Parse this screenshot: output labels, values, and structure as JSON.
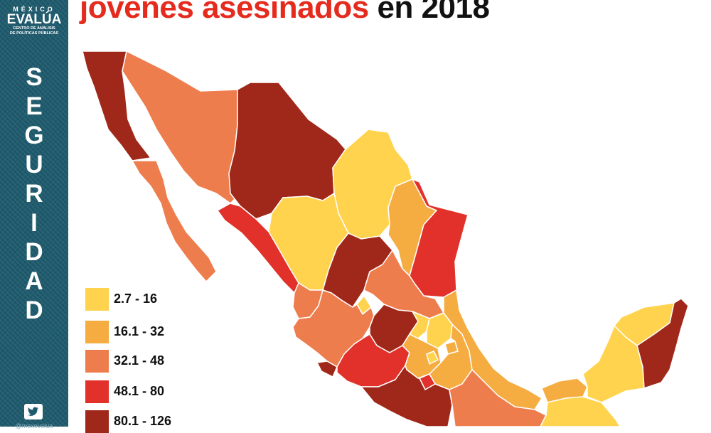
{
  "title": {
    "accent": "jóvenes asesinados",
    "rest": " en 2018"
  },
  "sidebar": {
    "logo_top": "MÉXICO",
    "logo_main": "EVALÚA",
    "logo_sub_1": "CENTRO DE ANÁLISIS",
    "logo_sub_2": "DE POLÍTICAS PÚBLICAS",
    "section_letters": [
      "S",
      "E",
      "G",
      "U",
      "R",
      "I",
      "D",
      "A",
      "D"
    ],
    "twitter_icon": "twitter-bird-icon",
    "handle": "@mexevalua"
  },
  "legend": [
    {
      "label": "2.7 - 16",
      "color": "#ffd34e"
    },
    {
      "label": "16.1 - 32",
      "color": "#f5ad42"
    },
    {
      "label": "32.1 - 48",
      "color": "#ee7d4e"
    },
    {
      "label": "48.1 - 80",
      "color": "#e2302a"
    },
    {
      "label": "80.1 - 126",
      "color": "#a0281a"
    }
  ]
}
